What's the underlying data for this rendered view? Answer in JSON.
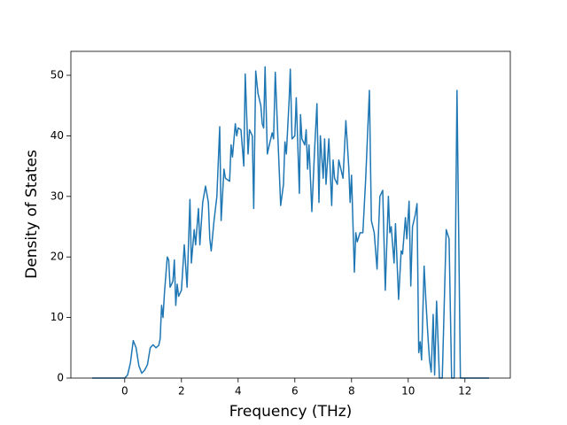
{
  "chart_data": {
    "type": "line",
    "x_label": "Frequency (THz)",
    "y_label": "Density of States",
    "x": [
      -1.15,
      0.0,
      0.1,
      0.2,
      0.3,
      0.4,
      0.5,
      0.6,
      0.7,
      0.8,
      0.9,
      1.0,
      1.1,
      1.2,
      1.25,
      1.3,
      1.35,
      1.4,
      1.5,
      1.55,
      1.6,
      1.7,
      1.75,
      1.8,
      1.85,
      1.9,
      2.0,
      2.1,
      2.2,
      2.3,
      2.35,
      2.45,
      2.5,
      2.6,
      2.65,
      2.75,
      2.85,
      2.95,
      3.0,
      3.05,
      3.15,
      3.25,
      3.35,
      3.4,
      3.5,
      3.55,
      3.7,
      3.75,
      3.8,
      3.9,
      3.95,
      4.0,
      4.1,
      4.2,
      4.25,
      4.35,
      4.4,
      4.5,
      4.55,
      4.62,
      4.7,
      4.8,
      4.85,
      4.9,
      4.95,
      5.03,
      5.1,
      5.2,
      5.25,
      5.31,
      5.4,
      5.5,
      5.6,
      5.65,
      5.7,
      5.8,
      5.84,
      5.9,
      6.0,
      6.05,
      6.16,
      6.2,
      6.25,
      6.35,
      6.4,
      6.45,
      6.5,
      6.6,
      6.7,
      6.78,
      6.85,
      6.9,
      7.0,
      7.05,
      7.1,
      7.2,
      7.3,
      7.35,
      7.4,
      7.5,
      7.55,
      7.65,
      7.7,
      7.8,
      7.9,
      7.95,
      8.0,
      8.1,
      8.15,
      8.2,
      8.3,
      8.4,
      8.5,
      8.63,
      8.7,
      8.8,
      8.9,
      9.0,
      9.1,
      9.19,
      9.3,
      9.35,
      9.4,
      9.5,
      9.55,
      9.66,
      9.75,
      9.8,
      9.9,
      9.95,
      10.03,
      10.09,
      10.15,
      10.25,
      10.31,
      10.37,
      10.42,
      10.47,
      10.56,
      10.62,
      10.7,
      10.75,
      10.81,
      10.88,
      10.93,
      11.0,
      11.1,
      11.2,
      11.34,
      11.44,
      11.53,
      11.62,
      11.72,
      11.84,
      12.85
    ],
    "series": [
      {
        "color": "#1f77b4",
        "values": [
          0,
          0,
          0.5,
          2.5,
          6.2,
          5,
          2,
          0.8,
          1.3,
          2.2,
          5,
          5.5,
          5,
          5.4,
          6.5,
          12,
          10,
          14,
          20,
          19.5,
          15,
          16,
          19.5,
          12,
          15.5,
          13.5,
          14.5,
          22,
          15,
          29.5,
          19,
          24.5,
          22,
          28,
          22,
          29,
          31.7,
          29,
          23,
          21,
          26,
          30,
          41.5,
          26,
          34.5,
          33,
          32.5,
          38.5,
          36.5,
          42,
          40,
          41.3,
          41,
          35,
          50.2,
          37,
          41,
          40,
          28,
          50.7,
          47,
          45,
          42,
          41.3,
          51.4,
          37,
          38.5,
          40.5,
          39.5,
          50.5,
          40,
          28.5,
          32,
          39,
          37,
          46,
          51,
          39.5,
          40,
          46.3,
          30.5,
          43.5,
          39.5,
          38.5,
          41,
          34.5,
          38.5,
          27.5,
          38,
          45.3,
          29,
          40,
          33,
          39.5,
          32,
          39.5,
          28.5,
          36,
          33,
          32,
          36,
          34,
          33,
          42.5,
          35,
          29,
          33.5,
          17.5,
          24,
          22.5,
          24,
          24,
          33,
          47.5,
          26,
          24,
          18,
          30,
          31,
          14.5,
          30,
          24,
          25,
          19,
          25.5,
          13,
          21,
          20.5,
          26.5,
          23,
          29.2,
          15.2,
          25,
          27,
          28.8,
          4.2,
          6,
          3,
          18.5,
          13,
          6.5,
          3,
          1,
          10.5,
          0.5,
          12.7,
          0,
          0,
          24.5,
          23,
          0,
          0,
          47.5,
          0,
          0
        ]
      }
    ],
    "xlim": [
      -1.9,
      13.6
    ],
    "ylim": [
      0,
      53.95
    ],
    "xticks": [
      0,
      2,
      4,
      6,
      8,
      10,
      12
    ],
    "yticks": [
      0,
      10,
      20,
      30,
      40,
      50
    ]
  }
}
